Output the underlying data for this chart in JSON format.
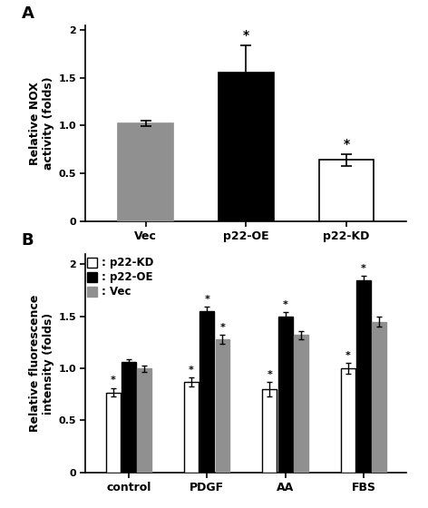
{
  "panel_A": {
    "categories": [
      "Vec",
      "p22-OE",
      "p22-KD"
    ],
    "values": [
      1.02,
      1.56,
      0.64
    ],
    "errors": [
      0.03,
      0.28,
      0.06
    ],
    "colors": [
      "#909090",
      "#000000",
      "#ffffff"
    ],
    "edgecolors": [
      "#909090",
      "#000000",
      "#000000"
    ],
    "ylabel": "Relative NOX\nactivity (folds)",
    "ylim": [
      0,
      2.05
    ],
    "yticks": [
      0,
      0.5,
      1.0,
      1.5,
      2.0
    ],
    "sig": [
      false,
      true,
      true
    ],
    "label": "A"
  },
  "panel_B": {
    "groups": [
      "control",
      "PDGF",
      "AA",
      "FBS"
    ],
    "series": {
      "p22-KD": {
        "values": [
          0.77,
          0.87,
          0.8,
          1.0
        ],
        "errors": [
          0.04,
          0.04,
          0.07,
          0.05
        ],
        "color": "#ffffff",
        "edgecolor": "#000000"
      },
      "p22-OE": {
        "values": [
          1.06,
          1.55,
          1.5,
          1.85
        ],
        "errors": [
          0.03,
          0.04,
          0.04,
          0.04
        ],
        "color": "#000000",
        "edgecolor": "#000000"
      },
      "Vec": {
        "values": [
          1.0,
          1.28,
          1.32,
          1.45
        ],
        "errors": [
          0.03,
          0.04,
          0.04,
          0.05
        ],
        "color": "#909090",
        "edgecolor": "#909090"
      }
    },
    "series_order": [
      "p22-KD",
      "p22-OE",
      "Vec"
    ],
    "ylabel": "Relative fluorescence\nintensity (folds)",
    "ylim": [
      0,
      2.1
    ],
    "yticks": [
      0,
      0.5,
      1.0,
      1.5,
      2.0
    ],
    "sig": {
      "p22-KD": [
        true,
        true,
        true,
        true
      ],
      "p22-OE": [
        false,
        true,
        true,
        true
      ],
      "Vec": [
        false,
        true,
        false,
        false
      ]
    },
    "legend_labels": [
      "□ : p22-KD",
      "■ : p22-OE",
      "□ : Vec"
    ],
    "legend_colors": [
      "#ffffff",
      "#000000",
      "#909090"
    ],
    "legend_edgecolors": [
      "#000000",
      "#000000",
      "#909090"
    ],
    "label": "B"
  }
}
